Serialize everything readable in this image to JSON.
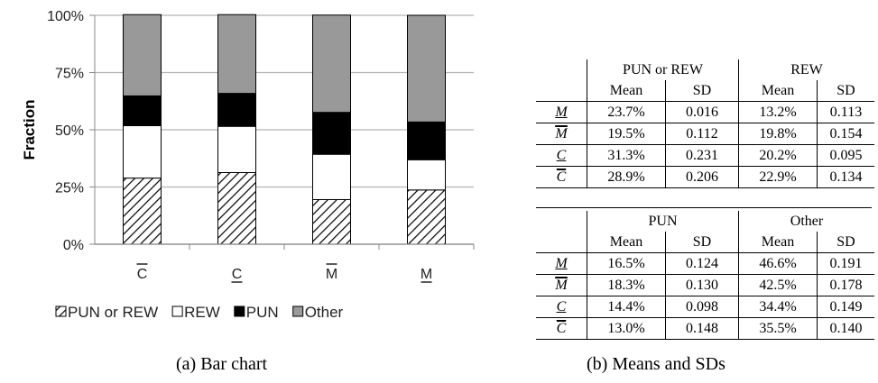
{
  "chart_data": {
    "type": "bar",
    "stacked": true,
    "percent": true,
    "categories": [
      "C̄",
      "C",
      "M̄",
      "M"
    ],
    "category_marks": [
      "overline",
      "underline",
      "overline",
      "underline"
    ],
    "series": [
      {
        "name": "PUN or REW",
        "values": [
          28.9,
          31.3,
          19.5,
          23.7
        ],
        "color": "#ffffff",
        "pattern": "hatch"
      },
      {
        "name": "REW",
        "values": [
          22.9,
          20.2,
          19.8,
          13.2
        ],
        "color": "#ffffff",
        "pattern": "none"
      },
      {
        "name": "PUN",
        "values": [
          13.0,
          14.4,
          18.3,
          16.5
        ],
        "color": "#000000",
        "pattern": "none"
      },
      {
        "name": "Other",
        "values": [
          35.5,
          34.4,
          42.5,
          46.6
        ],
        "color": "#999999",
        "pattern": "none"
      }
    ],
    "ylabel": "Fraction",
    "ylim": [
      0,
      100
    ],
    "yticks": [
      "0%",
      "25%",
      "50%",
      "75%",
      "100%"
    ],
    "grid": true,
    "legend_position": "bottom"
  },
  "captions": {
    "a": "(a) Bar chart",
    "b": "(b) Means and SDs"
  },
  "table": {
    "top": {
      "groups": [
        "PUN or REW",
        "REW"
      ],
      "subheaders": [
        "Mean",
        "SD",
        "Mean",
        "SD"
      ],
      "rows": [
        {
          "cond": "M",
          "mark": "underline",
          "cells": [
            "23.7%",
            "0.016",
            "13.2%",
            "0.113"
          ]
        },
        {
          "cond": "M",
          "mark": "double-overline",
          "cells": [
            "19.5%",
            "0.112",
            "19.8%",
            "0.154"
          ]
        },
        {
          "cond": "C",
          "mark": "underline",
          "cells": [
            "31.3%",
            "0.231",
            "20.2%",
            "0.095"
          ]
        },
        {
          "cond": "C",
          "mark": "double-overline",
          "cells": [
            "28.9%",
            "0.206",
            "22.9%",
            "0.134"
          ]
        }
      ]
    },
    "bottom": {
      "groups": [
        "PUN",
        "Other"
      ],
      "subheaders": [
        "Mean",
        "SD",
        "Mean",
        "SD"
      ],
      "rows": [
        {
          "cond": "M",
          "mark": "underline",
          "cells": [
            "16.5%",
            "0.124",
            "46.6%",
            "0.191"
          ]
        },
        {
          "cond": "M",
          "mark": "double-overline",
          "cells": [
            "18.3%",
            "0.130",
            "42.5%",
            "0.178"
          ]
        },
        {
          "cond": "C",
          "mark": "underline",
          "cells": [
            "14.4%",
            "0.098",
            "34.4%",
            "0.149"
          ]
        },
        {
          "cond": "C",
          "mark": "double-overline",
          "cells": [
            "13.0%",
            "0.148",
            "35.5%",
            "0.140"
          ]
        }
      ]
    }
  }
}
